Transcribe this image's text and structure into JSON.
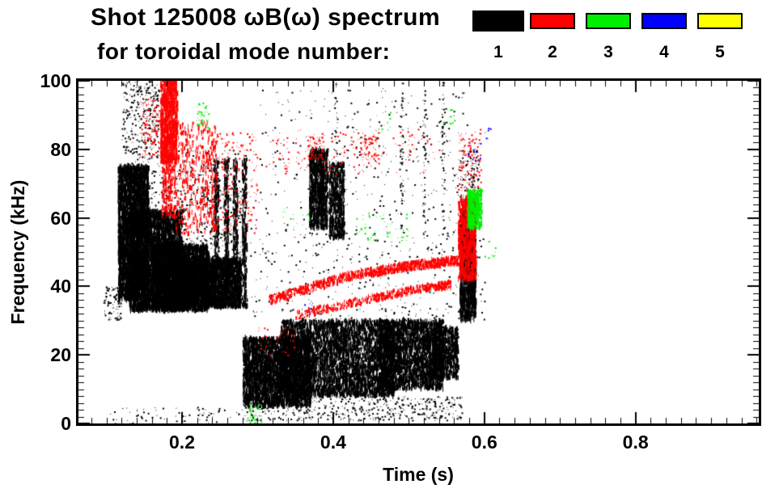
{
  "title": {
    "line1": "Shot 125008 ωB(ω) spectrum",
    "line2": "for toroidal mode number:"
  },
  "legend": {
    "modes": [
      {
        "label": "1",
        "color": "#000000"
      },
      {
        "label": "2",
        "color": "#ff0000"
      },
      {
        "label": "3",
        "color": "#00ee00"
      },
      {
        "label": "4",
        "color": "#0000ff"
      },
      {
        "label": "5",
        "color": "#ffff00"
      }
    ]
  },
  "chart_data": {
    "type": "scatter",
    "title": "Shot 125008 ωB(ω) spectrum for toroidal mode number",
    "xlabel": "Time (s)",
    "ylabel": "Frequency (kHz)",
    "xlim": [
      0.063,
      0.963
    ],
    "ylim": [
      0,
      100
    ],
    "xticks": [
      0.2,
      0.4,
      0.6,
      0.8
    ],
    "xtick_labels": [
      "0.2",
      "0.4",
      "0.6",
      "0.8"
    ],
    "x_minor_step": 0.02,
    "yticks": [
      0,
      20,
      40,
      60,
      80,
      100
    ],
    "ytick_labels": [
      "0",
      "20",
      "40",
      "60",
      "80",
      "100"
    ],
    "y_minor_step": 2,
    "grid": false,
    "legend_position": "top-right",
    "series": [
      {
        "name": "n=1",
        "color": "#000000",
        "clusters": [
          {
            "c": "box",
            "t": [
              0.095,
              0.12
            ],
            "f": [
              30,
              40
            ],
            "n": 90,
            "s": "dot"
          },
          {
            "c": "box",
            "t": [
              0.115,
              0.155
            ],
            "f": [
              36,
              75
            ],
            "n": 3000,
            "s": "dash",
            "h": 7
          },
          {
            "c": "box",
            "t": [
              0.13,
              0.2
            ],
            "f": [
              33,
              62
            ],
            "n": 3200,
            "s": "dash",
            "h": 7
          },
          {
            "c": "box",
            "t": [
              0.16,
              0.235
            ],
            "f": [
              33,
              52
            ],
            "n": 2800,
            "s": "dash",
            "h": 6
          },
          {
            "c": "box",
            "t": [
              0.2,
              0.278
            ],
            "f": [
              34,
              48
            ],
            "n": 2400,
            "s": "dash",
            "h": 6
          },
          {
            "c": "box",
            "t": [
              0.115,
              0.285
            ],
            "f": [
              48,
              80
            ],
            "n": 750,
            "s": "dot"
          },
          {
            "c": "box",
            "t": [
              0.12,
              0.175
            ],
            "f": [
              80,
              100
            ],
            "n": 280,
            "s": "dot"
          },
          {
            "c": "vlines",
            "t": [
              0.245,
              0.258,
              0.27,
              0.282
            ],
            "f": [
              34,
              77
            ],
            "per": 240,
            "j": 0.003
          },
          {
            "c": "box",
            "t": [
              0.1,
              0.28
            ],
            "f": [
              0,
              5
            ],
            "n": 70,
            "s": "dot"
          },
          {
            "c": "box",
            "t": [
              0.28,
              0.37
            ],
            "f": [
              5,
              25
            ],
            "n": 3200,
            "s": "dash",
            "h": 6
          },
          {
            "c": "box",
            "t": [
              0.33,
              0.48
            ],
            "f": [
              8,
              30
            ],
            "n": 4000,
            "s": "dash",
            "h": 6
          },
          {
            "c": "box",
            "t": [
              0.46,
              0.545
            ],
            "f": [
              10,
              30
            ],
            "n": 2500,
            "s": "dash",
            "h": 6
          },
          {
            "c": "box",
            "t": [
              0.53,
              0.565
            ],
            "f": [
              13,
              28
            ],
            "n": 800,
            "s": "dash",
            "h": 5
          },
          {
            "c": "box",
            "t": [
              0.28,
              0.57
            ],
            "f": [
              1,
              8
            ],
            "n": 500,
            "s": "dot"
          },
          {
            "c": "box",
            "t": [
              0.368,
              0.392
            ],
            "f": [
              57,
              80
            ],
            "n": 850,
            "s": "dash",
            "h": 7
          },
          {
            "c": "box",
            "t": [
              0.394,
              0.414
            ],
            "f": [
              54,
              76
            ],
            "n": 550,
            "s": "dash",
            "h": 6
          },
          {
            "c": "box",
            "t": [
              0.29,
              0.6
            ],
            "f": [
              30,
              60
            ],
            "n": 420,
            "s": "dot"
          },
          {
            "c": "box",
            "t": [
              0.3,
              0.58
            ],
            "f": [
              60,
              98
            ],
            "n": 300,
            "s": "dot"
          },
          {
            "c": "vlines",
            "t": [
              0.403,
              0.49,
              0.52,
              0.545
            ],
            "f": [
              55,
              100
            ],
            "per": 55,
            "j": 0.002,
            "s": "dot"
          },
          {
            "c": "box",
            "t": [
              0.567,
              0.588
            ],
            "f": [
              30,
              62
            ],
            "n": 1100,
            "s": "dash",
            "h": 7
          },
          {
            "c": "box",
            "t": [
              0.567,
              0.592
            ],
            "f": [
              62,
              80
            ],
            "n": 130,
            "s": "dot"
          }
        ]
      },
      {
        "name": "n=2",
        "color": "#ff0000",
        "clusters": [
          {
            "c": "box",
            "t": [
              0.171,
              0.193
            ],
            "f": [
              76,
              100
            ],
            "n": 800,
            "s": "dash",
            "h": 7
          },
          {
            "c": "box",
            "t": [
              0.173,
              0.19
            ],
            "f": [
              60,
              76
            ],
            "n": 180,
            "s": "dash",
            "h": 5
          },
          {
            "c": "box",
            "t": [
              0.19,
              0.245
            ],
            "f": [
              55,
              88
            ],
            "n": 420,
            "s": "dash",
            "h": 5
          },
          {
            "c": "box",
            "t": [
              0.245,
              0.3
            ],
            "f": [
              55,
              85
            ],
            "n": 220,
            "s": "dot"
          },
          {
            "c": "box",
            "t": [
              0.145,
              0.17
            ],
            "f": [
              78,
              95
            ],
            "n": 120,
            "s": "dot"
          },
          {
            "c": "arc",
            "p": [
              [
                0.315,
                36
              ],
              [
                0.42,
                43
              ],
              [
                0.5,
                46
              ],
              [
                0.565,
                47.5
              ]
            ],
            "w": 2.6,
            "n": 950
          },
          {
            "c": "arc",
            "p": [
              [
                0.35,
                31.5
              ],
              [
                0.45,
                36.5
              ],
              [
                0.52,
                39.5
              ],
              [
                0.555,
                40.5
              ]
            ],
            "w": 2.2,
            "n": 480
          },
          {
            "c": "box",
            "t": [
              0.31,
              0.54
            ],
            "f": [
              73,
              86
            ],
            "n": 160,
            "s": "dot"
          },
          {
            "c": "box",
            "t": [
              0.365,
              0.385
            ],
            "f": [
              77,
              84
            ],
            "n": 70,
            "s": "dot"
          },
          {
            "c": "box",
            "t": [
              0.435,
              0.46
            ],
            "f": [
              76,
              84
            ],
            "n": 70,
            "s": "dot"
          },
          {
            "c": "box",
            "t": [
              0.565,
              0.588
            ],
            "f": [
              42,
              66
            ],
            "n": 680,
            "s": "dash",
            "h": 7
          },
          {
            "c": "box",
            "t": [
              0.565,
              0.595
            ],
            "f": [
              66,
              86
            ],
            "n": 130,
            "s": "dot"
          },
          {
            "c": "box",
            "t": [
              0.3,
              0.35
            ],
            "f": [
              20,
              28
            ],
            "n": 40,
            "s": "dot"
          }
        ]
      },
      {
        "name": "n=3",
        "color": "#00ee00",
        "clusters": [
          {
            "c": "box",
            "t": [
              0.577,
              0.596
            ],
            "f": [
              57,
              68
            ],
            "n": 400,
            "s": "dash",
            "h": 5
          },
          {
            "c": "box",
            "t": [
              0.218,
              0.235
            ],
            "f": [
              86,
              94
            ],
            "n": 40,
            "s": "dot"
          },
          {
            "c": "box",
            "t": [
              0.285,
              0.305
            ],
            "f": [
              0,
              6
            ],
            "n": 35,
            "s": "dot"
          },
          {
            "c": "box",
            "t": [
              0.43,
              0.5
            ],
            "f": [
              53,
              62
            ],
            "n": 50,
            "s": "dot"
          },
          {
            "c": "box",
            "t": [
              0.33,
              0.37
            ],
            "f": [
              57,
              63
            ],
            "n": 15,
            "s": "dot"
          },
          {
            "c": "box",
            "t": [
              0.455,
              0.475
            ],
            "f": [
              85,
              91
            ],
            "n": 12,
            "s": "dot"
          },
          {
            "c": "box",
            "t": [
              0.545,
              0.56
            ],
            "f": [
              87,
              92
            ],
            "n": 10,
            "s": "dot"
          },
          {
            "c": "box",
            "t": [
              0.6,
              0.615
            ],
            "f": [
              48,
              54
            ],
            "n": 8,
            "s": "dot"
          }
        ]
      },
      {
        "name": "n=4",
        "color": "#0000ff",
        "clusters": [
          {
            "c": "box",
            "t": [
              0.578,
              0.595
            ],
            "f": [
              76,
              82
            ],
            "n": 16,
            "s": "dot"
          },
          {
            "c": "box",
            "t": [
              0.36,
              0.378
            ],
            "f": [
              30,
              36
            ],
            "n": 10,
            "s": "dot"
          },
          {
            "c": "box",
            "t": [
              0.6,
              0.61
            ],
            "f": [
              83,
              87
            ],
            "n": 6,
            "s": "dot"
          }
        ]
      },
      {
        "name": "n=5",
        "color": "#ffff00",
        "clusters": []
      }
    ]
  }
}
